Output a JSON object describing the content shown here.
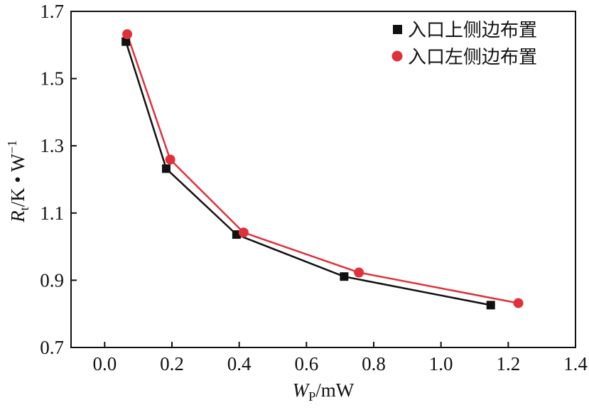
{
  "chart_data": {
    "type": "line",
    "title": "",
    "xlabel": {
      "main": "W",
      "sub": "P",
      "unit": "/mW"
    },
    "ylabel": {
      "main": "R",
      "sub": "t",
      "unit": "/K • W",
      "sup": "−1"
    },
    "xlim": [
      -0.1,
      1.4
    ],
    "ylim": [
      0.7,
      1.7
    ],
    "x_ticks": [
      0.0,
      0.2,
      0.4,
      0.6,
      0.8,
      1.0,
      1.2,
      1.4
    ],
    "x_tick_labels": [
      "0.0",
      "0.2",
      "0.4",
      "0.6",
      "0.8",
      "1.0",
      "1.2",
      "1.4"
    ],
    "y_ticks": [
      0.7,
      0.9,
      1.1,
      1.3,
      1.5,
      1.7
    ],
    "y_tick_labels": [
      "0.7",
      "0.9",
      "1.1",
      "1.3",
      "1.5",
      "1.7"
    ],
    "grid": false,
    "legend_position": "top-right",
    "series": [
      {
        "name": "入口上侧边布置",
        "marker": "square",
        "color": "#111111",
        "x": [
          0.063,
          0.183,
          0.392,
          0.712,
          1.148
        ],
        "y": [
          1.61,
          1.232,
          1.036,
          0.911,
          0.826
        ]
      },
      {
        "name": "入口左侧边布置",
        "marker": "circle",
        "color": "#e0303a",
        "x": [
          0.067,
          0.195,
          0.413,
          0.756,
          1.23
        ],
        "y": [
          1.632,
          1.259,
          1.042,
          0.923,
          0.832
        ]
      }
    ]
  }
}
